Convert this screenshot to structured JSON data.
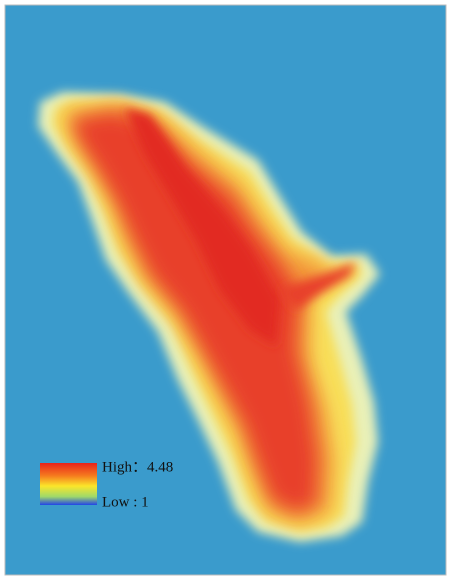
{
  "legend": {
    "high": "High：4.48",
    "low": "Low : 1"
  }
}
